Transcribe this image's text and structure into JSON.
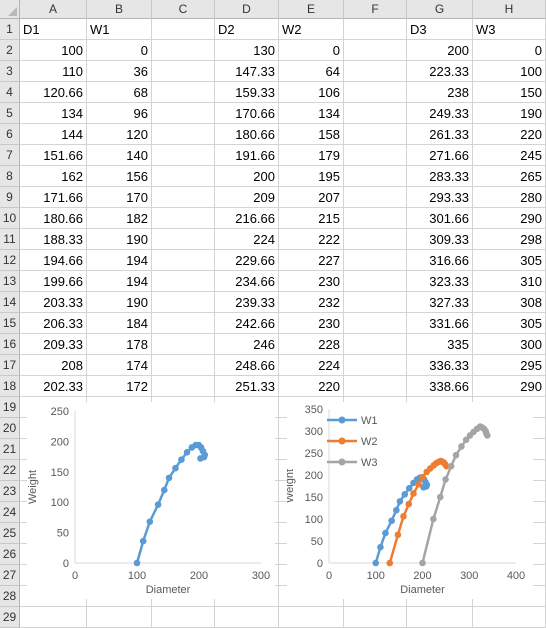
{
  "spreadsheet": {
    "columns": [
      "A",
      "B",
      "C",
      "D",
      "E",
      "F",
      "G",
      "H"
    ],
    "rows": [
      "1",
      "2",
      "3",
      "4",
      "5",
      "6",
      "7",
      "8",
      "9",
      "10",
      "11",
      "12",
      "13",
      "14",
      "15",
      "16",
      "17",
      "18",
      "19",
      "20",
      "21",
      "22",
      "23",
      "24",
      "25",
      "26",
      "27",
      "28",
      "29"
    ],
    "headers": {
      "A": "D1",
      "B": "W1",
      "D": "D2",
      "E": "W2",
      "G": "D3",
      "H": "W3"
    },
    "table": [
      [
        "100",
        "0",
        "130",
        "0",
        "200",
        "0"
      ],
      [
        "110",
        "36",
        "147.33",
        "64",
        "223.33",
        "100"
      ],
      [
        "120.66",
        "68",
        "159.33",
        "106",
        "238",
        "150"
      ],
      [
        "134",
        "96",
        "170.66",
        "134",
        "249.33",
        "190"
      ],
      [
        "144",
        "120",
        "180.66",
        "158",
        "261.33",
        "220"
      ],
      [
        "151.66",
        "140",
        "191.66",
        "179",
        "271.66",
        "245"
      ],
      [
        "162",
        "156",
        "200",
        "195",
        "283.33",
        "265"
      ],
      [
        "171.66",
        "170",
        "209",
        "207",
        "293.33",
        "280"
      ],
      [
        "180.66",
        "182",
        "216.66",
        "215",
        "301.66",
        "290"
      ],
      [
        "188.33",
        "190",
        "224",
        "222",
        "309.33",
        "298"
      ],
      [
        "194.66",
        "194",
        "229.66",
        "227",
        "316.66",
        "305"
      ],
      [
        "199.66",
        "194",
        "234.66",
        "230",
        "323.33",
        "310"
      ],
      [
        "203.33",
        "190",
        "239.33",
        "232",
        "327.33",
        "308"
      ],
      [
        "206.33",
        "184",
        "242.66",
        "230",
        "331.66",
        "305"
      ],
      [
        "209.33",
        "178",
        "246",
        "228",
        "335",
        "300"
      ],
      [
        "208",
        "174",
        "248.66",
        "224",
        "336.33",
        "295"
      ],
      [
        "202.33",
        "172",
        "251.33",
        "220",
        "338.66",
        "290"
      ]
    ]
  },
  "chart_data": [
    {
      "type": "scatter",
      "xlabel": "Diameter",
      "ylabel": "Weight",
      "xlim": [
        0,
        300
      ],
      "ylim": [
        0,
        250
      ],
      "xticks": [
        "0",
        "100",
        "200",
        "300"
      ],
      "yticks": [
        "0",
        "50",
        "100",
        "150",
        "200",
        "250"
      ],
      "legend": "none",
      "grid": false,
      "series": [
        {
          "color": "#5b9bd5",
          "x": [
            100,
            110,
            120.66,
            134,
            144,
            151.66,
            162,
            171.66,
            180.66,
            188.33,
            194.66,
            199.66,
            203.33,
            206.33,
            209.33,
            208,
            202.33
          ],
          "y": [
            0,
            36,
            68,
            96,
            120,
            140,
            156,
            170,
            182,
            190,
            194,
            194,
            190,
            184,
            178,
            174,
            172
          ]
        }
      ]
    },
    {
      "type": "scatter",
      "xlabel": "Diameter",
      "ylabel": "Weight",
      "xlim": [
        0,
        400
      ],
      "ylim": [
        0,
        350
      ],
      "xticks": [
        "0",
        "100",
        "200",
        "300",
        "400"
      ],
      "yticks": [
        "0",
        "50",
        "100",
        "150",
        "200",
        "250",
        "300",
        "350"
      ],
      "legend": "top-left",
      "grid": false,
      "series": [
        {
          "name": "W1",
          "color": "#5b9bd5",
          "x": [
            100,
            110,
            120.66,
            134,
            144,
            151.66,
            162,
            171.66,
            180.66,
            188.33,
            194.66,
            199.66,
            203.33,
            206.33,
            209.33,
            208,
            202.33
          ],
          "y": [
            0,
            36,
            68,
            96,
            120,
            140,
            156,
            170,
            182,
            190,
            194,
            194,
            190,
            184,
            178,
            174,
            172
          ]
        },
        {
          "name": "W2",
          "color": "#ed7d31",
          "x": [
            130,
            147.33,
            159.33,
            170.66,
            180.66,
            191.66,
            200,
            209,
            216.66,
            224,
            229.66,
            234.66,
            239.33,
            242.66,
            246,
            248.66,
            251.33
          ],
          "y": [
            0,
            64,
            106,
            134,
            158,
            179,
            195,
            207,
            215,
            222,
            227,
            230,
            232,
            230,
            228,
            224,
            220
          ]
        },
        {
          "name": "W3",
          "color": "#a5a5a5",
          "x": [
            200,
            223.33,
            238,
            249.33,
            261.33,
            271.66,
            283.33,
            293.33,
            301.66,
            309.33,
            316.66,
            323.33,
            327.33,
            331.66,
            335,
            336.33,
            338.66
          ],
          "y": [
            0,
            100,
            150,
            190,
            220,
            245,
            265,
            280,
            290,
            298,
            305,
            310,
            308,
            305,
            300,
            295,
            290
          ]
        }
      ]
    }
  ]
}
